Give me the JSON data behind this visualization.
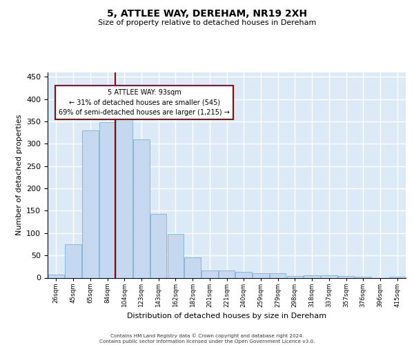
{
  "title": "5, ATTLEE WAY, DEREHAM, NR19 2XH",
  "subtitle": "Size of property relative to detached houses in Dereham",
  "xlabel": "Distribution of detached houses by size in Dereham",
  "ylabel": "Number of detached properties",
  "bar_color": "#c5d8ef",
  "bar_edge_color": "#7bafd4",
  "bg_color": "#dce9f7",
  "grid_color": "#ffffff",
  "vline_color": "#990000",
  "annotation_text": "5 ATTLEE WAY: 93sqm\n← 31% of detached houses are smaller (545)\n69% of semi-detached houses are larger (1,215) →",
  "annotation_box_color": "#990000",
  "footer_line1": "Contains HM Land Registry data © Crown copyright and database right 2024.",
  "footer_line2": "Contains public sector information licensed under the Open Government Licence v3.0.",
  "bin_labels": [
    "26sqm",
    "45sqm",
    "65sqm",
    "84sqm",
    "104sqm",
    "123sqm",
    "143sqm",
    "162sqm",
    "182sqm",
    "201sqm",
    "221sqm",
    "240sqm",
    "259sqm",
    "279sqm",
    "298sqm",
    "318sqm",
    "337sqm",
    "357sqm",
    "376sqm",
    "396sqm",
    "415sqm"
  ],
  "counts": [
    7,
    75,
    330,
    348,
    363,
    310,
    143,
    98,
    46,
    17,
    16,
    13,
    10,
    10,
    4,
    6,
    6,
    4,
    2,
    0,
    3
  ],
  "vline_bar_index": 3.7,
  "ylim": [
    0,
    460
  ],
  "yticks": [
    0,
    50,
    100,
    150,
    200,
    250,
    300,
    350,
    400,
    450
  ]
}
